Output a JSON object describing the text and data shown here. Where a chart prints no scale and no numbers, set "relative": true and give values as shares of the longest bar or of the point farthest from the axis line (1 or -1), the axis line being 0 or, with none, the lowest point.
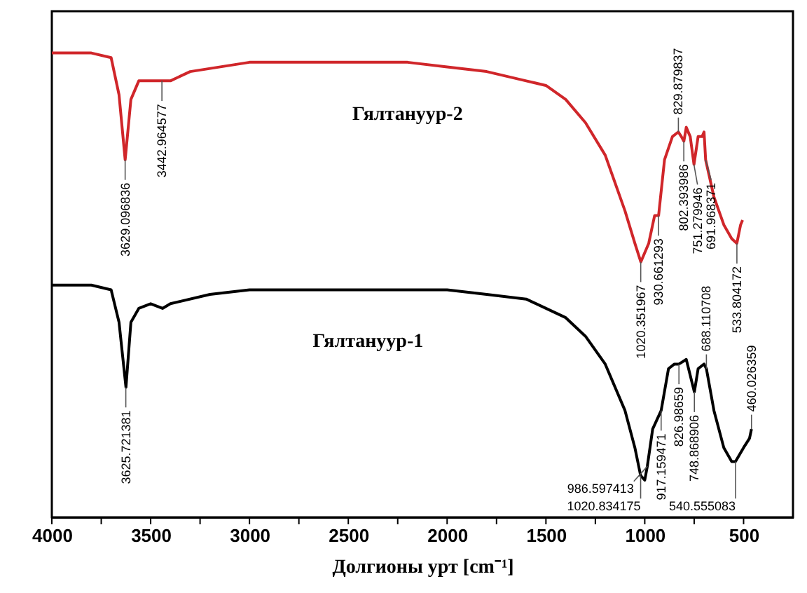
{
  "chart_data": {
    "type": "line",
    "xlabel": "Долгионы урт [cm⁻¹]",
    "relative": true,
    "tick_labels": "x",
    "legend": false,
    "marker": "none",
    "line_style": "solid",
    "xlim": [
      4000,
      250
    ],
    "xticks": [
      4000,
      {
        "value": 3750,
        "label": null
      },
      3500,
      {
        "value": 3250,
        "label": null
      },
      3000,
      {
        "value": 2750,
        "label": null
      },
      2500,
      {
        "value": 2250,
        "label": null
      },
      2000,
      {
        "value": 1750,
        "label": null
      },
      1500,
      {
        "value": 1250,
        "label": null
      },
      1000,
      {
        "value": 750,
        "label": null
      },
      500
    ],
    "series": [
      {
        "name": "Гялтануур-2",
        "color": "#d0262a",
        "x": [
          4000,
          3800,
          3700,
          3660,
          3629,
          3600,
          3560,
          3500,
          3443,
          3400,
          3300,
          3000,
          2700,
          2500,
          2200,
          2000,
          1800,
          1600,
          1500,
          1400,
          1300,
          1200,
          1100,
          1050,
          1020,
          980,
          950,
          930,
          900,
          860,
          830,
          815,
          802,
          790,
          770,
          751,
          730,
          710,
          700,
          692,
          650,
          600,
          560,
          534,
          515,
          505
        ],
        "values": [
          1.0,
          1.0,
          0.99,
          0.91,
          0.77,
          0.9,
          0.94,
          0.94,
          0.94,
          0.94,
          0.96,
          0.98,
          0.98,
          0.98,
          0.98,
          0.97,
          0.96,
          0.94,
          0.93,
          0.9,
          0.85,
          0.78,
          0.66,
          0.59,
          0.55,
          0.59,
          0.65,
          0.65,
          0.77,
          0.82,
          0.83,
          0.82,
          0.81,
          0.84,
          0.82,
          0.76,
          0.82,
          0.82,
          0.83,
          0.77,
          0.69,
          0.63,
          0.6,
          0.59,
          0.63,
          0.64
        ]
      },
      {
        "name": "Гялтануур-1",
        "color": "#000000",
        "x": [
          4000,
          3800,
          3700,
          3660,
          3625,
          3600,
          3560,
          3500,
          3440,
          3400,
          3200,
          3000,
          2700,
          2400,
          2000,
          1800,
          1600,
          1400,
          1300,
          1200,
          1100,
          1050,
          1021,
          1000,
          987,
          960,
          917,
          880,
          850,
          827,
          790,
          749,
          730,
          700,
          688,
          650,
          600,
          560,
          541,
          500,
          470,
          460
        ],
        "values": [
          0.5,
          0.5,
          0.49,
          0.42,
          0.28,
          0.42,
          0.45,
          0.46,
          0.45,
          0.46,
          0.48,
          0.49,
          0.49,
          0.49,
          0.49,
          0.48,
          0.47,
          0.43,
          0.39,
          0.33,
          0.23,
          0.15,
          0.09,
          0.08,
          0.11,
          0.19,
          0.23,
          0.32,
          0.33,
          0.33,
          0.34,
          0.27,
          0.32,
          0.33,
          0.32,
          0.23,
          0.15,
          0.12,
          0.12,
          0.15,
          0.17,
          0.19
        ]
      }
    ],
    "annotations": [
      {
        "text": "3629.096836",
        "x": 3629.096836,
        "y": 0.77
      },
      {
        "text": "3442.964577",
        "x": 3442.964577,
        "y": 0.94
      },
      {
        "text": "1020.351967",
        "x": 1020.351967,
        "y": 0.55
      },
      {
        "text": "930.661293",
        "x": 930.661293,
        "y": 0.65
      },
      {
        "text": "829.879837",
        "x": 829.879837,
        "y": 0.83
      },
      {
        "text": "802.393986",
        "x": 802.393986,
        "y": 0.81
      },
      {
        "text": "751.279946",
        "x": 751.279946,
        "y": 0.76
      },
      {
        "text": "691.968371",
        "x": 691.968371,
        "y": 0.77
      },
      {
        "text": "533.804172",
        "x": 533.804172,
        "y": 0.59
      },
      {
        "text": "3625.721381",
        "x": 3625.721381,
        "y": 0.28
      },
      {
        "text": "1020.834175",
        "x": 1020.834175,
        "y": 0.09
      },
      {
        "text": "986.597413",
        "x": 986.597413,
        "y": 0.11
      },
      {
        "text": "917.159471",
        "x": 917.159471,
        "y": 0.23
      },
      {
        "text": "826.98659",
        "x": 826.98659,
        "y": 0.33
      },
      {
        "text": "748.868906",
        "x": 748.868906,
        "y": 0.27
      },
      {
        "text": "688.110708",
        "x": 688.110708,
        "y": 0.32
      },
      {
        "text": "540.555083",
        "x": 540.555083,
        "y": 0.12
      },
      {
        "text": "460.026359",
        "x": 460.026359,
        "y": 0.19
      }
    ]
  }
}
